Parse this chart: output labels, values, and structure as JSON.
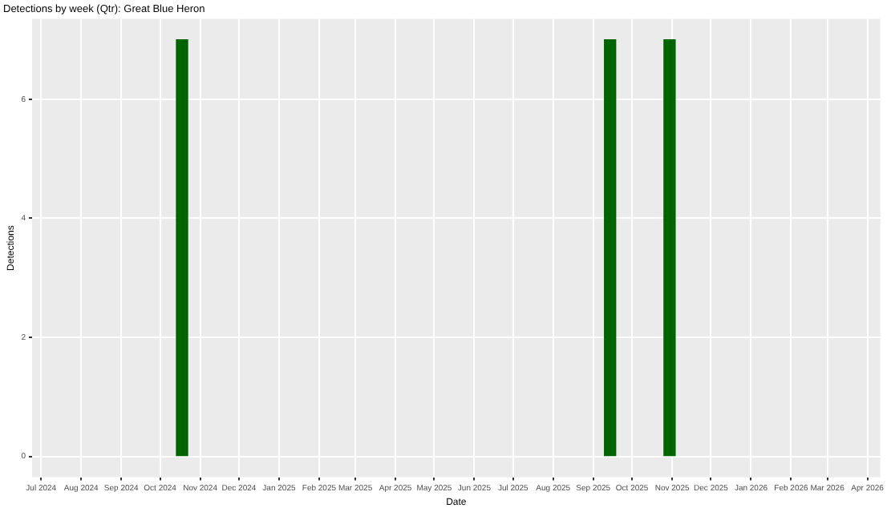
{
  "chart_data": {
    "type": "bar",
    "title": "Detections by week (Qtr): Great Blue Heron",
    "xlabel": "Date",
    "ylabel": "Detections",
    "x": [
      "2024-10-18",
      "2025-09-14",
      "2025-10-30"
    ],
    "values": [
      7,
      7,
      7
    ],
    "color": "#006400",
    "xlim": [
      "2024-06-24",
      "2026-04-11"
    ],
    "xticks": [
      {
        "value": "2024-07-01",
        "label": "Jul 2024"
      },
      {
        "value": "2024-08-01",
        "label": "Aug 2024"
      },
      {
        "value": "2024-09-01",
        "label": "Sep 2024"
      },
      {
        "value": "2024-10-01",
        "label": "Oct 2024"
      },
      {
        "value": "2024-11-01",
        "label": "Nov 2024"
      },
      {
        "value": "2024-12-01",
        "label": "Dec 2024"
      },
      {
        "value": "2025-01-01",
        "label": "Jan 2025"
      },
      {
        "value": "2025-02-01",
        "label": "Feb 2025"
      },
      {
        "value": "2025-03-01",
        "label": "Mar 2025"
      },
      {
        "value": "2025-04-01",
        "label": "Apr 2025"
      },
      {
        "value": "2025-05-01",
        "label": "May 2025"
      },
      {
        "value": "2025-06-01",
        "label": "Jun 2025"
      },
      {
        "value": "2025-07-01",
        "label": "Jul 2025"
      },
      {
        "value": "2025-08-01",
        "label": "Aug 2025"
      },
      {
        "value": "2025-09-01",
        "label": "Sep 2025"
      },
      {
        "value": "2025-10-01",
        "label": "Oct 2025"
      },
      {
        "value": "2025-11-01",
        "label": "Nov 2025"
      },
      {
        "value": "2025-12-01",
        "label": "Dec 2025"
      },
      {
        "value": "2026-01-01",
        "label": "Jan 2026"
      },
      {
        "value": "2026-02-01",
        "label": "Feb 2026"
      },
      {
        "value": "2026-03-01",
        "label": "Mar 2026"
      },
      {
        "value": "2026-04-01",
        "label": "Apr 2026"
      }
    ],
    "ylim": [
      -0.35,
      7.35
    ],
    "yticks": [
      0,
      2,
      4,
      6
    ],
    "grid": true
  }
}
